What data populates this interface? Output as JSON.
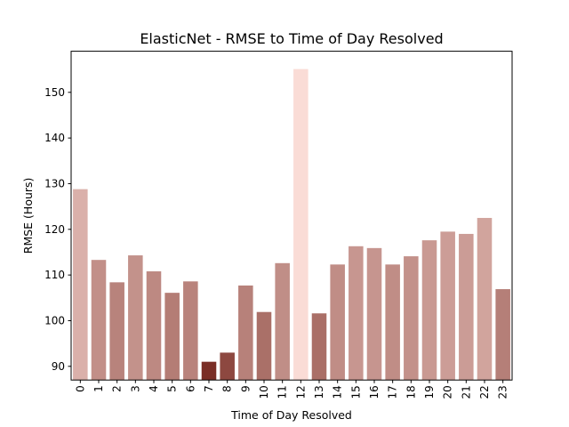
{
  "chart_data": {
    "type": "bar",
    "title": "ElasticNet - RMSE to Time of Day Resolved",
    "xlabel": "Time of Day Resolved",
    "ylabel": "RMSE (Hours)",
    "categories": [
      "0",
      "1",
      "2",
      "3",
      "4",
      "5",
      "6",
      "7",
      "8",
      "9",
      "10",
      "11",
      "12",
      "13",
      "14",
      "15",
      "16",
      "17",
      "18",
      "19",
      "20",
      "21",
      "22",
      "23"
    ],
    "values": [
      128.8,
      113.3,
      108.4,
      114.3,
      110.8,
      106.1,
      108.6,
      91.0,
      93.0,
      107.7,
      101.9,
      112.6,
      155.1,
      101.6,
      112.3,
      116.3,
      115.9,
      112.3,
      114.1,
      117.6,
      119.5,
      119.0,
      122.5,
      106.9
    ],
    "yticks": [
      90,
      100,
      110,
      120,
      130,
      140,
      150
    ],
    "ylim": [
      87,
      159
    ],
    "grid": false,
    "legend": "none",
    "colormap": {
      "low": "#7a2e26",
      "high": "#fadcd6"
    }
  }
}
